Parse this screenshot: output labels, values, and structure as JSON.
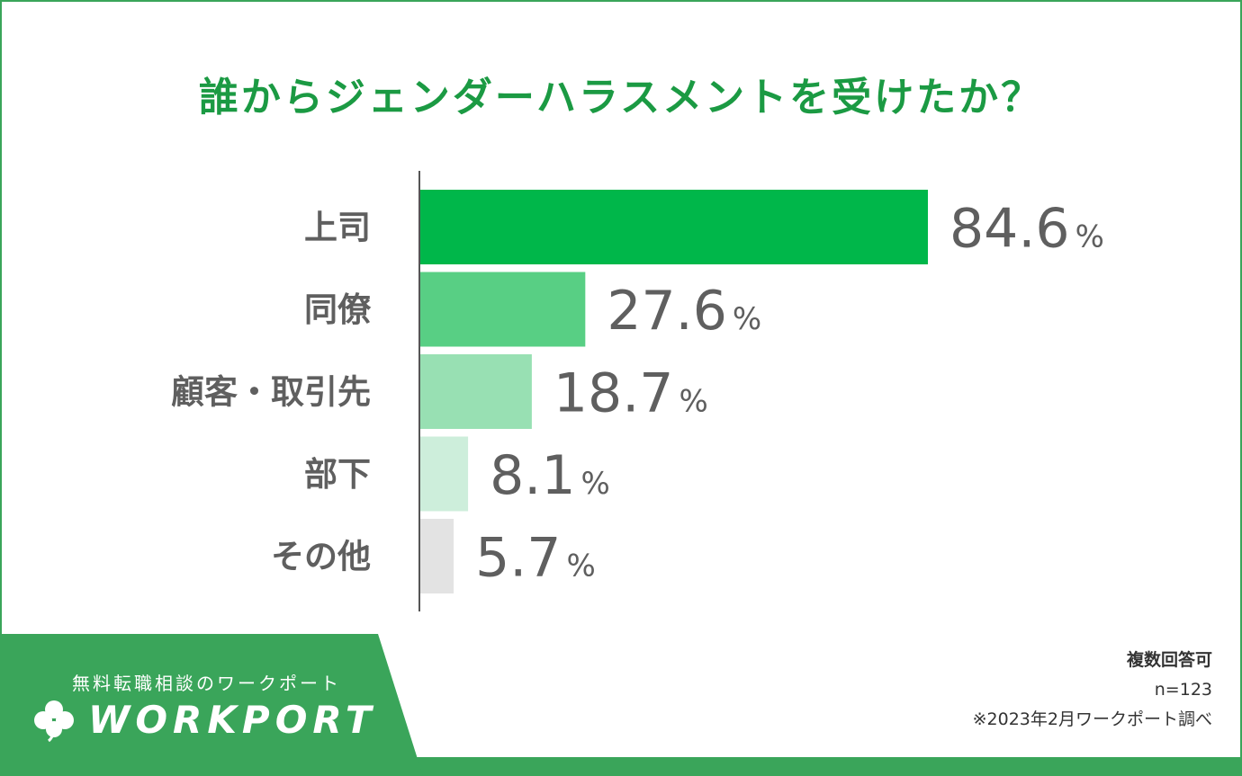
{
  "chart_data": {
    "type": "bar",
    "orientation": "horizontal",
    "title": "誰からジェンダーハラスメントを受けたか？",
    "categories": [
      "上司",
      "同僚",
      "顧客・取引先",
      "部下",
      "その他"
    ],
    "values": [
      84.6,
      27.6,
      18.7,
      8.1,
      5.7
    ],
    "value_labels": [
      "84.6",
      "27.6",
      "18.7",
      "8.1",
      "5.7"
    ],
    "unit": "%",
    "bar_colors": [
      "#00b74a",
      "#58cf84",
      "#98e0b3",
      "#cdeedb",
      "#e3e3e3"
    ],
    "xlabel": "",
    "ylabel": "",
    "grid": false
  },
  "colors": {
    "brand_green": "#3aa55a",
    "title_green": "#1b9a43",
    "text_gray": "#5f5f5f"
  },
  "logo": {
    "tagline": "無料転職相談のワークポート",
    "name": "WORKPORT",
    "icon": "clover-icon"
  },
  "notes": {
    "multiple": "複数回答可",
    "sample": "n=123",
    "source": "※2023年2月ワークポート調べ"
  }
}
